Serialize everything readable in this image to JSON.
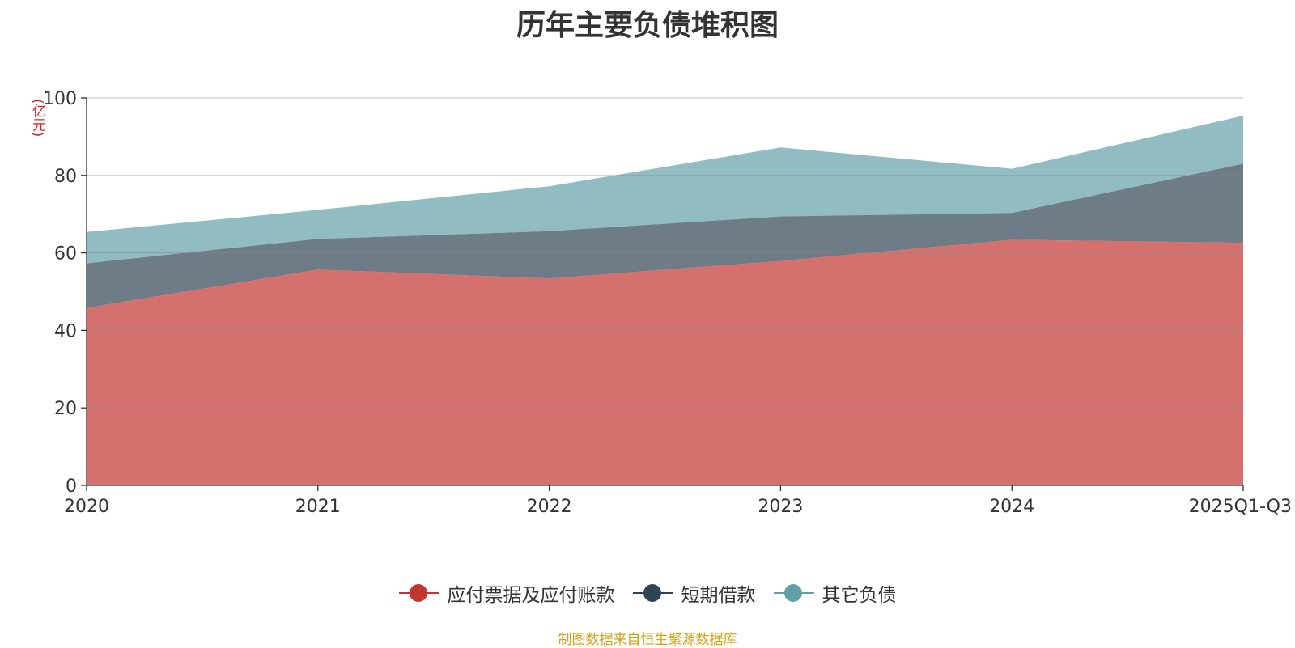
{
  "chart_data": {
    "type": "area",
    "stacked": true,
    "title": "历年主要负债堆积图",
    "unit_label": "(亿元)",
    "categories": [
      "2020",
      "2021",
      "2022",
      "2023",
      "2024",
      "2025Q1-Q3"
    ],
    "ylim": [
      0,
      100
    ],
    "yticks": [
      "0",
      "20",
      "40",
      "60",
      "80",
      "100"
    ],
    "grid": true,
    "legend_position": "bottom",
    "series": [
      {
        "name": "应付票据及应付账款",
        "values": [
          45.8,
          55.7,
          53.4,
          57.9,
          63.4,
          62.6
        ],
        "color": "#c23531"
      },
      {
        "name": "短期借款",
        "values": [
          11.5,
          7.9,
          12.2,
          11.5,
          6.9,
          20.4
        ],
        "color": "#2f4554"
      },
      {
        "name": "其它负债",
        "values": [
          8.1,
          7.5,
          11.6,
          17.8,
          11.4,
          12.4
        ],
        "color": "#61a0a8"
      }
    ],
    "source": "制图数据来自恒生聚源数据库"
  }
}
